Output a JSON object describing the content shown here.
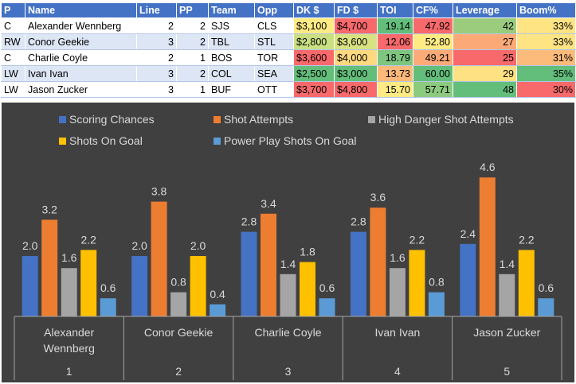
{
  "table": {
    "headers": [
      "P",
      "Name",
      "Line",
      "PP",
      "Team",
      "Opp",
      "DK $",
      "FD $",
      "TOI",
      "CF%",
      "Leverage",
      "Boom%"
    ],
    "rows": [
      [
        "C",
        "Alexander Wennberg",
        "2",
        "2",
        "SJS",
        "CLS",
        "$3,100",
        "$4,700",
        "19.14",
        "47.92",
        "42",
        "33%"
      ],
      [
        "RW",
        "Conor Geekie",
        "3",
        "2",
        "TBL",
        "STL",
        "$2,800",
        "$3,600",
        "12.06",
        "52.80",
        "27",
        "33%"
      ],
      [
        "C",
        "Charlie Coyle",
        "2",
        "1",
        "BOS",
        "TOR",
        "$3,600",
        "$4,000",
        "18.79",
        "49.21",
        "25",
        "31%"
      ],
      [
        "LW",
        "Ivan Ivan",
        "3",
        "2",
        "COL",
        "SEA",
        "$2,500",
        "$3,000",
        "13.73",
        "60.00",
        "29",
        "35%"
      ],
      [
        "LW",
        "Jason Zucker",
        "3",
        "1",
        "BUF",
        "OTT",
        "$3,700",
        "$4,800",
        "15.70",
        "57.71",
        "48",
        "30%"
      ]
    ],
    "cell_colors": [
      [
        "",
        "",
        "",
        "",
        "",
        "",
        "#ffeb84",
        "#f8696b",
        "#63be7b",
        "#f8696b",
        "#9bcc7e",
        "#ffe483"
      ],
      [
        "",
        "",
        "",
        "",
        "",
        "",
        "#c9df81",
        "#d9e281",
        "#f8696b",
        "#ffeb84",
        "#fbaa77",
        "#ffe483"
      ],
      [
        "",
        "",
        "",
        "",
        "",
        "",
        "#f8696b",
        "#ffd980",
        "#7ec680",
        "#fcaa77",
        "#f8696b",
        "#fcbb7a"
      ],
      [
        "",
        "",
        "",
        "",
        "",
        "",
        "#63be7b",
        "#63be7b",
        "#fcb97a",
        "#63be7b",
        "#fde183",
        "#63be7b"
      ],
      [
        "",
        "",
        "",
        "",
        "",
        "",
        "#f8696b",
        "#f8696b",
        "#ffeb84",
        "#8ccb7f",
        "#63be7b",
        "#f8696b"
      ]
    ]
  },
  "colors": {
    "chart_background": "#404040",
    "plot_background": "#404040",
    "text": "#d9d9d9",
    "axis_line": "#a6a6a6",
    "series": [
      "#4472c4",
      "#ed7d31",
      "#a5a5a5",
      "#ffc000",
      "#5b9bd5"
    ]
  },
  "chart_data": {
    "type": "bar",
    "title": "",
    "categories": [
      {
        "name_lines": [
          "Alexander",
          "Wennberg"
        ],
        "rank": "1"
      },
      {
        "name_lines": [
          "Conor Geekie"
        ],
        "rank": "2"
      },
      {
        "name_lines": [
          "Charlie Coyle"
        ],
        "rank": "3"
      },
      {
        "name_lines": [
          "Ivan Ivan"
        ],
        "rank": "4"
      },
      {
        "name_lines": [
          "Jason Zucker"
        ],
        "rank": "5"
      }
    ],
    "series": [
      {
        "name": "Scoring Chances",
        "values": [
          2.0,
          2.0,
          2.8,
          2.8,
          2.4
        ]
      },
      {
        "name": "Shot Attempts",
        "values": [
          3.2,
          3.8,
          3.4,
          3.6,
          4.6
        ]
      },
      {
        "name": "High Danger Shot Attempts",
        "values": [
          1.6,
          0.8,
          1.4,
          1.6,
          1.4
        ]
      },
      {
        "name": "Shots On Goal",
        "values": [
          2.2,
          2.0,
          1.8,
          2.2,
          2.2
        ]
      },
      {
        "name": "Power Play Shots On Goal",
        "values": [
          0.6,
          0.4,
          0.6,
          0.8,
          0.6
        ]
      }
    ],
    "ylim": [
      0,
      5
    ],
    "legend": "top",
    "grid": false
  }
}
